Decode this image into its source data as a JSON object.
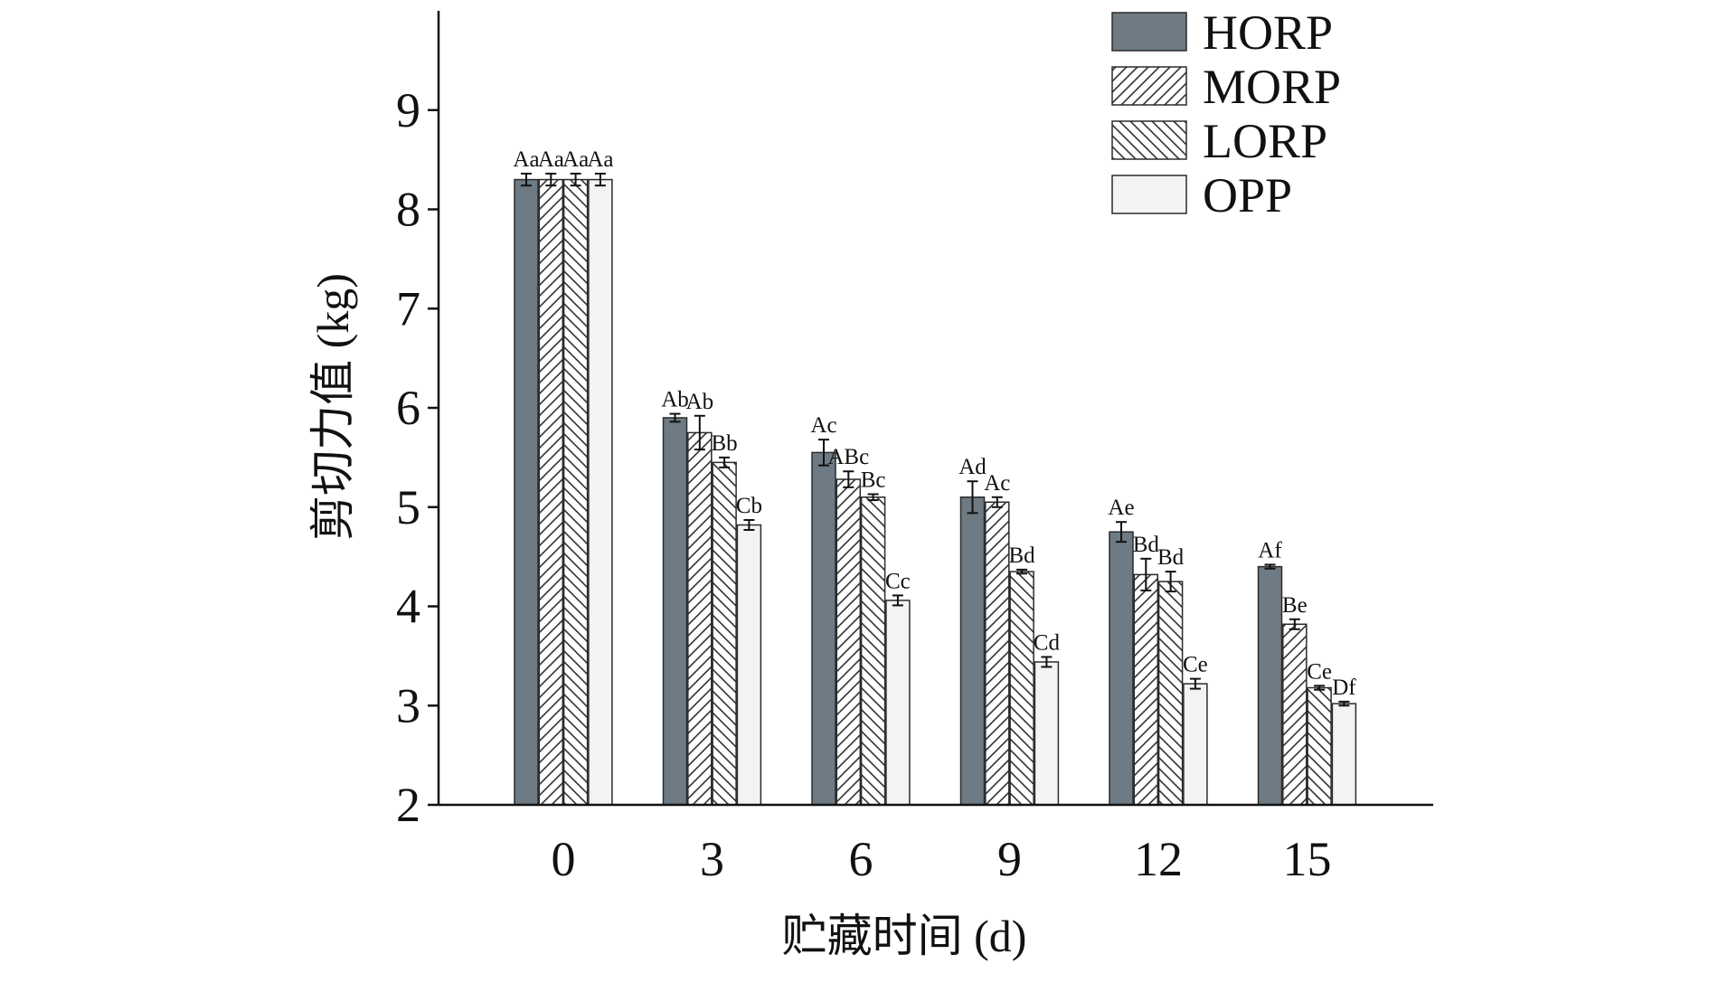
{
  "chart_data": {
    "type": "bar",
    "title": "",
    "xlabel": "贮藏时间 (d)",
    "ylabel": "剪切力值 (kg)",
    "ylim": [
      2,
      10
    ],
    "yticks": [
      2,
      3,
      4,
      5,
      6,
      7,
      8,
      9
    ],
    "categories": [
      "0",
      "3",
      "6",
      "9",
      "12",
      "15"
    ],
    "legend_position": "top-right",
    "grid": false,
    "series": [
      {
        "name": "HORP",
        "fill": "solid",
        "color": "#6e7b84",
        "values": [
          8.3,
          5.9,
          5.55,
          5.1,
          4.75,
          4.4
        ],
        "errors": [
          0.06,
          0.04,
          0.13,
          0.16,
          0.1,
          0.02
        ],
        "labels": [
          "Aa",
          "Ab",
          "Ac",
          "Ad",
          "Ae",
          "Af"
        ]
      },
      {
        "name": "MORP",
        "fill": "hatch-forward",
        "color": "#ffffff",
        "values": [
          8.3,
          5.75,
          5.28,
          5.05,
          4.32,
          3.82
        ],
        "errors": [
          0.06,
          0.17,
          0.08,
          0.05,
          0.16,
          0.05
        ],
        "labels": [
          "Aa",
          "Ab",
          "ABc",
          "Ac",
          "Bd",
          "Be"
        ]
      },
      {
        "name": "LORP",
        "fill": "hatch-back",
        "color": "#ffffff",
        "values": [
          8.3,
          5.45,
          5.1,
          4.35,
          4.25,
          3.18
        ],
        "errors": [
          0.06,
          0.05,
          0.03,
          0.02,
          0.1,
          0.02
        ],
        "labels": [
          "Aa",
          "Bb",
          "Bc",
          "Bd",
          "Bd",
          "Ce"
        ]
      },
      {
        "name": "OPP",
        "fill": "light",
        "color": "#f3f3f3",
        "values": [
          8.3,
          4.82,
          4.06,
          3.44,
          3.22,
          3.02
        ],
        "errors": [
          0.06,
          0.05,
          0.05,
          0.05,
          0.05,
          0.02
        ],
        "labels": [
          "Aa",
          "Cb",
          "Cc",
          "Cd",
          "Ce",
          "Df"
        ]
      }
    ]
  }
}
